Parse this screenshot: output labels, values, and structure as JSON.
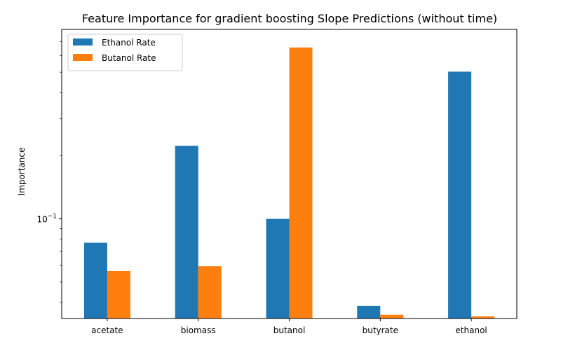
{
  "chart_data": {
    "type": "bar",
    "title": "Feature Importance for gradient boosting Slope Predictions (without time)",
    "xlabel": "",
    "ylabel": "Importance",
    "y_scale": "log",
    "ylim": [
      0.0335,
      0.8
    ],
    "y_tick_major": {
      "value": 0.1,
      "base": "10",
      "exponent": "−1"
    },
    "y_ticks_minor": [
      0.04,
      0.05,
      0.06,
      0.07,
      0.08,
      0.09,
      0.2,
      0.3,
      0.4,
      0.5,
      0.6,
      0.7
    ],
    "categories": [
      "acetate",
      "biomass",
      "butanol",
      "butyrate",
      "ethanol"
    ],
    "series": [
      {
        "name": "Ethanol Rate",
        "color": "#1f77b4",
        "values": [
          0.077,
          0.223,
          0.1,
          0.0385,
          0.503
        ]
      },
      {
        "name": "Butanol Rate",
        "color": "#ff7f0e",
        "values": [
          0.0565,
          0.0595,
          0.656,
          0.0349,
          0.0343
        ]
      }
    ],
    "legend_position": "top-left",
    "grid": false
  }
}
